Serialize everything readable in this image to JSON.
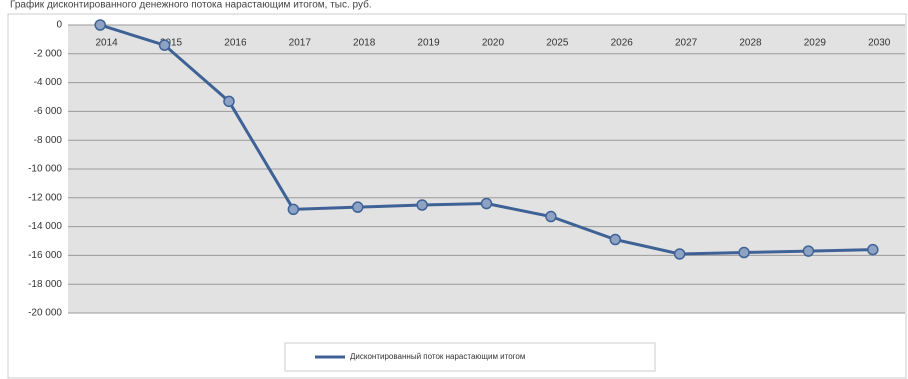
{
  "chart_data": {
    "type": "line",
    "title": "График дисконтированного денежного потока нарастающим итогом, тыс. руб.",
    "categories": [
      "2014",
      "2015",
      "2016",
      "2017",
      "2018",
      "2019",
      "2020",
      "2025",
      "2026",
      "2027",
      "2028",
      "2029",
      "2030"
    ],
    "series": [
      {
        "name": "Дисконтированный поток нарастающим итогом",
        "color": "#3f6296",
        "values": [
          0,
          -1400,
          -5300,
          -12800,
          -12650,
          -12500,
          -12400,
          -13300,
          -14900,
          -15900,
          -15800,
          -15700,
          -15600
        ]
      }
    ],
    "ylim": [
      -20000,
      0
    ],
    "yticks": [
      0,
      {
        "value": -2000,
        "label": "-2 000"
      },
      {
        "value": -4000,
        "label": "-4 000"
      },
      {
        "value": -6000,
        "label": "-6 000"
      },
      {
        "value": -8000,
        "label": "-8 000"
      },
      {
        "value": -10000,
        "label": "-10 000"
      },
      {
        "value": -12000,
        "label": "-12 000"
      },
      {
        "value": -14000,
        "label": "-14 000"
      },
      {
        "value": -16000,
        "label": "-16 000"
      },
      {
        "value": -18000,
        "label": "-18 000"
      },
      {
        "value": -20000,
        "label": "-20 000"
      }
    ],
    "grid": true
  }
}
